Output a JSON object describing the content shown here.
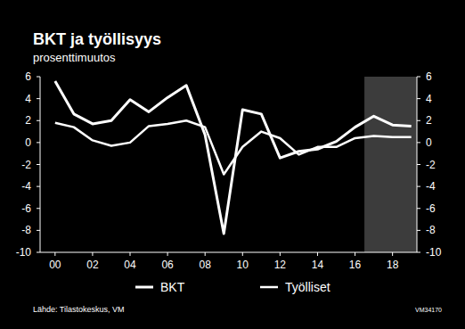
{
  "chart_data": {
    "type": "line",
    "title": "BKT ja työllisyys",
    "subtitle": "prosenttimuutos",
    "annotations": [
      "Lähde: Tilastokeskus, VM",
      "VM34170"
    ],
    "x": [
      0,
      1,
      2,
      3,
      4,
      5,
      6,
      7,
      8,
      9,
      10,
      11,
      12,
      13,
      14,
      15,
      16,
      17,
      18,
      19
    ],
    "series": [
      {
        "name": "BKT",
        "color": "#ffffff",
        "values": [
          5.6,
          2.6,
          1.7,
          2.0,
          3.9,
          2.8,
          4.1,
          5.2,
          0.7,
          -8.3,
          3.0,
          2.6,
          -1.4,
          -0.8,
          -0.6,
          0.1,
          1.4,
          2.4,
          1.6,
          1.5
        ]
      },
      {
        "name": "Työlliset",
        "color": "#ffffff",
        "axis": "y2",
        "values": [
          1.8,
          1.4,
          0.2,
          -0.3,
          0.0,
          1.5,
          1.7,
          2.0,
          1.4,
          -2.9,
          -0.4,
          1.0,
          0.4,
          -1.1,
          -0.4,
          -0.4,
          0.4,
          0.6,
          0.5,
          0.5
        ]
      }
    ],
    "forecast_from": 16.5,
    "xlim": [
      -0.8,
      19.3
    ],
    "xticks": [
      {
        "value": 0,
        "label": "00"
      },
      {
        "value": 2,
        "label": "02"
      },
      {
        "value": 4,
        "label": "04"
      },
      {
        "value": 6,
        "label": "06"
      },
      {
        "value": 8,
        "label": "08"
      },
      10,
      12,
      14,
      16,
      18
    ],
    "ylim": [
      -10,
      6
    ],
    "yticks": [
      -10,
      -8,
      -6,
      -4,
      -2,
      0,
      2,
      4,
      6
    ],
    "y2lim": [
      -10,
      6
    ],
    "y2ticks": [
      -10,
      -8,
      -6,
      -4,
      -2,
      0,
      2,
      4,
      6
    ],
    "grid": false,
    "legend": "bottom"
  }
}
